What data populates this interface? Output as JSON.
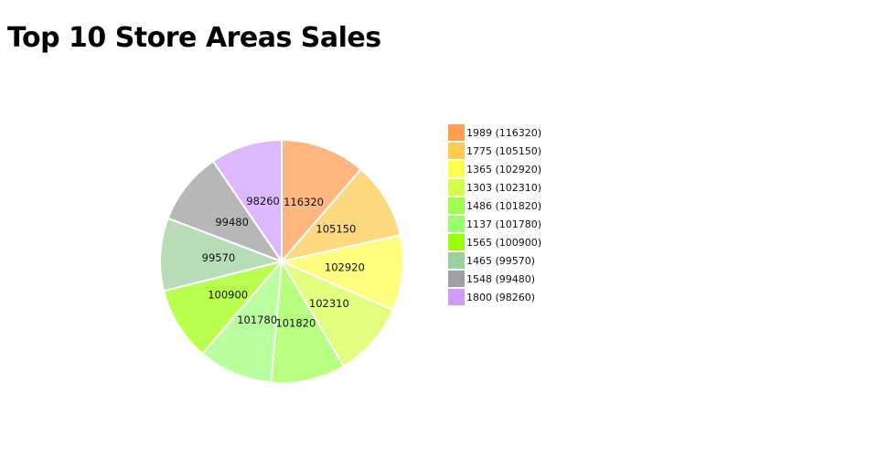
{
  "chart_data": {
    "type": "pie",
    "title": "Top 10 Store Areas Sales",
    "slices": [
      {
        "label": "1989",
        "value": 116320,
        "slice_color": "#ffb77f",
        "legend_color": "#ff9f4f"
      },
      {
        "label": "1775",
        "value": 105150,
        "slice_color": "#ffd97f",
        "legend_color": "#ffcc4f"
      },
      {
        "label": "1365",
        "value": 102920,
        "slice_color": "#ffff7f",
        "legend_color": "#ffff4f"
      },
      {
        "label": "1303",
        "value": 102310,
        "slice_color": "#e0ff7f",
        "legend_color": "#d4ff4f"
      },
      {
        "label": "1486",
        "value": 101820,
        "slice_color": "#b7ff7f",
        "legend_color": "#a1ff4f"
      },
      {
        "label": "1137",
        "value": 101780,
        "slice_color": "#b9ff9f",
        "legend_color": "#98ff6e"
      },
      {
        "label": "1565",
        "value": 100900,
        "slice_color": "#b9ff4f",
        "legend_color": "#9cff0f"
      },
      {
        "label": "1465",
        "value": 99570,
        "slice_color": "#b7dcb7",
        "legend_color": "#9ccf9c"
      },
      {
        "label": "1548",
        "value": 99480,
        "slice_color": "#b7b7b7",
        "legend_color": "#9f9f9f"
      },
      {
        "label": "1800",
        "value": 98260,
        "slice_color": "#dcb9fc",
        "legend_color": "#d29cff"
      }
    ],
    "legend_position": "right"
  }
}
